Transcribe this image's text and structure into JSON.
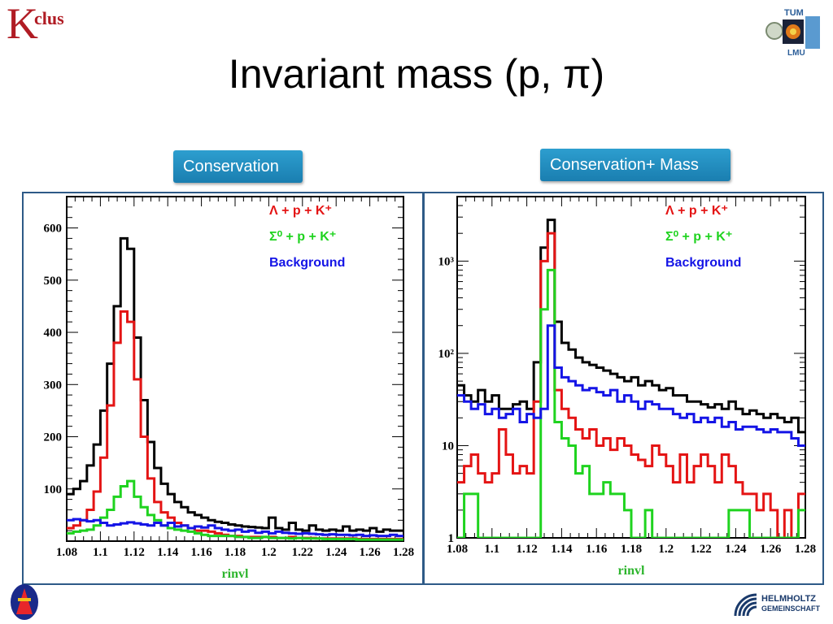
{
  "logos": {
    "top_left": {
      "main": "K",
      "sub": "clus"
    },
    "helmholtz": {
      "line1": "HELMHOLTZ",
      "line2": "GEMEINSCHAFT"
    },
    "tum": {
      "top": "TUM",
      "bottom": "LMU"
    }
  },
  "title": "Invariant mass (p, π)",
  "buttons": [
    {
      "label": "Conservation"
    },
    {
      "label": "Conservation+ Mass"
    }
  ],
  "colors": {
    "total": "#000000",
    "lambda": "#e41414",
    "sigma": "#1fd31f",
    "background": "#1414e6",
    "frame": "#2e5a87",
    "button": "#1f86b8"
  },
  "chart_data": [
    {
      "type": "line",
      "xlabel": "rinvl",
      "xlim": [
        1.08,
        1.28
      ],
      "xticks": [
        "1.08",
        "1.1",
        "1.12",
        "1.14",
        "1.16",
        "1.18",
        "1.2",
        "1.22",
        "1.24",
        "1.26",
        "1.28"
      ],
      "ylim": [
        0,
        660
      ],
      "yticks": [
        100,
        200,
        300,
        400,
        500,
        600
      ],
      "bin_edges_start": 1.08,
      "bin_width": 0.004,
      "legend": [
        {
          "text": "Λ + p + K⁺",
          "color": "#e41414"
        },
        {
          "text": "Σ⁰ + p + K⁺",
          "color": "#1fd31f"
        },
        {
          "text": "Background",
          "color": "#1414e6"
        }
      ],
      "series": [
        {
          "color": "#000000",
          "values": [
            90,
            100,
            115,
            145,
            185,
            250,
            340,
            450,
            580,
            560,
            390,
            270,
            190,
            140,
            110,
            90,
            75,
            65,
            55,
            50,
            45,
            40,
            37,
            35,
            32,
            30,
            28,
            27,
            26,
            25,
            45,
            25,
            22,
            35,
            22,
            20,
            30,
            22,
            20,
            22,
            20,
            28,
            20,
            22,
            20,
            25,
            18,
            22,
            20,
            20
          ]
        },
        {
          "color": "#e41414",
          "values": [
            25,
            30,
            40,
            60,
            95,
            160,
            260,
            380,
            440,
            420,
            310,
            200,
            120,
            75,
            55,
            45,
            35,
            30,
            25,
            20,
            20,
            18,
            15,
            12,
            10,
            10,
            8,
            8,
            8,
            8,
            8,
            6,
            6,
            8,
            6,
            6,
            6,
            5,
            5,
            5,
            5,
            5,
            5,
            4,
            4,
            4,
            4,
            4,
            4,
            4
          ]
        },
        {
          "color": "#1fd31f",
          "values": [
            15,
            18,
            20,
            22,
            30,
            45,
            60,
            85,
            105,
            115,
            85,
            65,
            50,
            40,
            30,
            25,
            22,
            20,
            18,
            15,
            12,
            10,
            10,
            10,
            10,
            8,
            8,
            6,
            6,
            8,
            6,
            6,
            6,
            5,
            6,
            5,
            5,
            5,
            4,
            4,
            4,
            4,
            4,
            3,
            3,
            3,
            3,
            3,
            3,
            3
          ]
        },
        {
          "color": "#1414e6",
          "values": [
            40,
            42,
            40,
            38,
            40,
            35,
            30,
            32,
            34,
            36,
            34,
            32,
            30,
            35,
            30,
            35,
            28,
            30,
            25,
            28,
            26,
            30,
            25,
            22,
            20,
            22,
            18,
            20,
            16,
            18,
            15,
            18,
            16,
            15,
            14,
            15,
            14,
            13,
            12,
            13,
            12,
            12,
            11,
            12,
            10,
            11,
            10,
            10,
            12,
            10
          ]
        }
      ]
    },
    {
      "type": "line",
      "xlabel": "rinvl",
      "xlim": [
        1.08,
        1.28
      ],
      "xticks": [
        "1.08",
        "1.1",
        "1.12",
        "1.14",
        "1.16",
        "1.18",
        "1.2",
        "1.22",
        "1.24",
        "1.26",
        "1.28"
      ],
      "y_scale": "log",
      "ylim": [
        1,
        5000
      ],
      "yticks": [
        {
          "label": "1",
          "value": 1
        },
        {
          "label": "10",
          "value": 10
        },
        {
          "label": "10²",
          "value": 100
        },
        {
          "label": "10³",
          "value": 1000
        }
      ],
      "bin_edges_start": 1.08,
      "bin_width": 0.004,
      "legend": [
        {
          "text": "Λ + p + K⁺",
          "color": "#e41414"
        },
        {
          "text": "Σ⁰ + p + K⁺",
          "color": "#1fd31f"
        },
        {
          "text": "Background",
          "color": "#1414e6"
        }
      ],
      "series": [
        {
          "color": "#000000",
          "values": [
            45,
            35,
            30,
            40,
            30,
            35,
            25,
            25,
            28,
            30,
            25,
            80,
            1400,
            2800,
            220,
            130,
            110,
            90,
            80,
            75,
            70,
            65,
            60,
            55,
            50,
            55,
            45,
            50,
            45,
            40,
            42,
            35,
            35,
            30,
            30,
            28,
            26,
            28,
            25,
            30,
            25,
            22,
            24,
            22,
            20,
            22,
            20,
            18,
            20,
            14
          ]
        },
        {
          "color": "#e41414",
          "values": [
            4,
            6,
            8,
            5,
            4,
            5,
            15,
            8,
            5,
            6,
            5,
            30,
            1000,
            2000,
            40,
            25,
            20,
            15,
            12,
            15,
            10,
            12,
            9,
            12,
            10,
            8,
            7,
            6,
            10,
            8,
            6,
            4,
            8,
            4,
            6,
            8,
            6,
            4,
            8,
            6,
            4,
            3,
            3,
            2,
            3,
            2,
            1,
            2,
            1,
            3
          ]
        },
        {
          "color": "#1fd31f",
          "values": [
            1,
            3,
            3,
            1,
            1,
            1,
            1,
            1,
            1,
            1,
            1,
            1,
            300,
            800,
            18,
            12,
            10,
            5,
            6,
            3,
            3,
            4,
            3,
            3,
            2,
            1,
            1,
            2,
            1,
            1,
            1,
            1,
            1,
            1,
            1,
            1,
            1,
            1,
            1,
            2,
            2,
            2,
            1,
            1,
            1,
            1,
            1,
            1,
            1,
            2
          ]
        },
        {
          "color": "#1414e6",
          "values": [
            35,
            30,
            25,
            28,
            22,
            25,
            20,
            22,
            25,
            18,
            22,
            20,
            25,
            200,
            70,
            55,
            50,
            45,
            40,
            42,
            38,
            35,
            40,
            30,
            35,
            30,
            25,
            30,
            28,
            25,
            25,
            22,
            20,
            22,
            18,
            20,
            18,
            20,
            16,
            18,
            15,
            16,
            16,
            15,
            14,
            15,
            14,
            14,
            12,
            10
          ]
        }
      ]
    }
  ]
}
